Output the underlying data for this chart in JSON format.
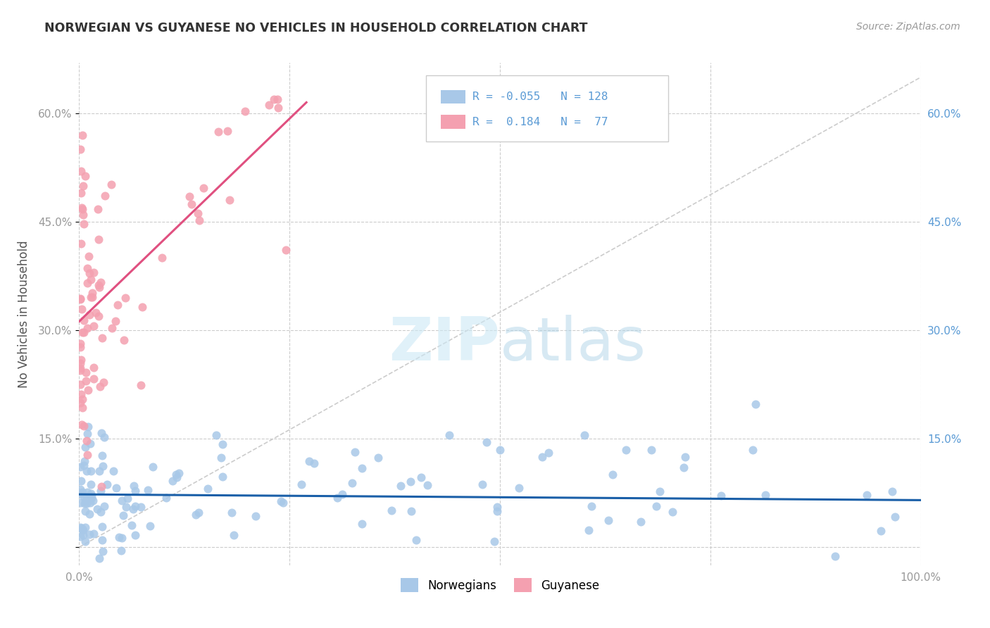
{
  "title": "NORWEGIAN VS GUYANESE NO VEHICLES IN HOUSEHOLD CORRELATION CHART",
  "source": "Source: ZipAtlas.com",
  "ylabel": "No Vehicles in Household",
  "xlim": [
    0.0,
    1.0
  ],
  "ylim": [
    -0.025,
    0.67
  ],
  "norwegian_color": "#a8c8e8",
  "guyanese_color": "#f4a0b0",
  "norwegian_line_color": "#1a5fa8",
  "guyanese_line_color": "#e05080",
  "norwegian_R": -0.055,
  "norwegian_N": 128,
  "guyanese_R": 0.184,
  "guyanese_N": 77
}
